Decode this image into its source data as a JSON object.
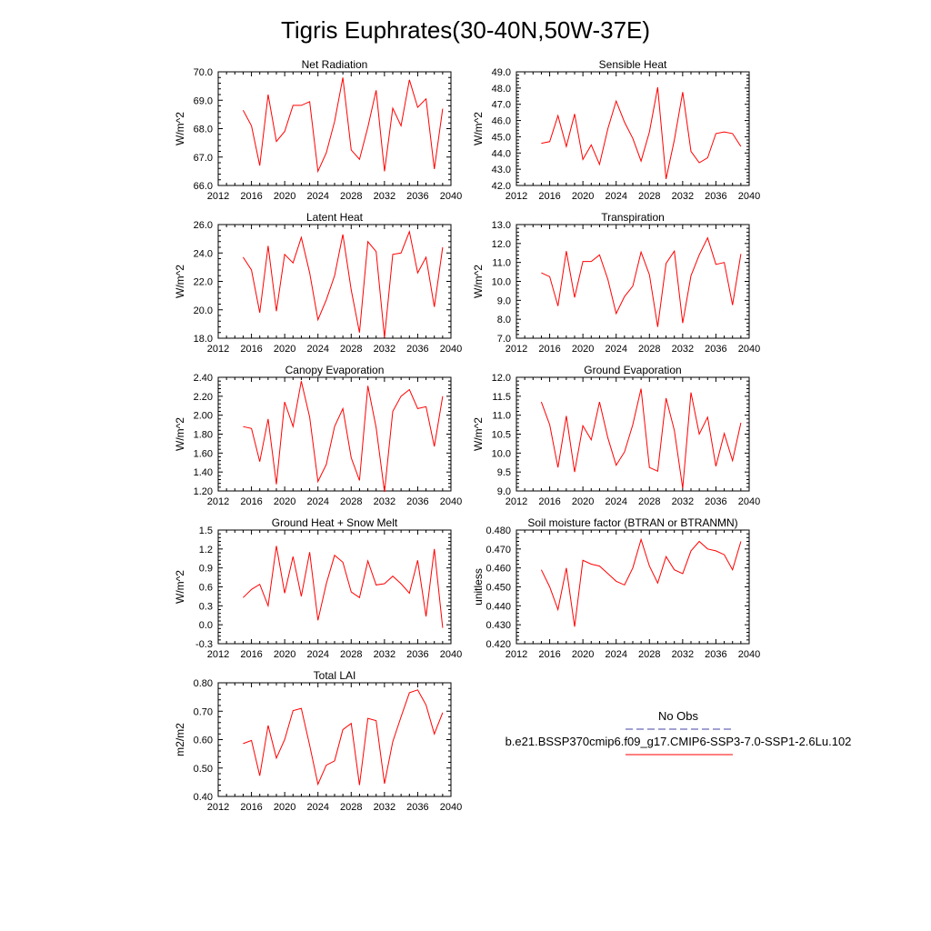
{
  "figure": {
    "title": "Tigris Euphrates(30-40N,50W-37E)"
  },
  "legend": {
    "header": "No Obs",
    "items": [
      {
        "label": "",
        "color": "#4444aa",
        "style": "dashed"
      },
      {
        "label": "b.e21.BSSP370cmip6.f09_g17.CMIP6-SSP3-7.0-SSP1-2.6Lu.102",
        "color": "#ff0000",
        "style": "solid"
      }
    ]
  },
  "chart_data": [
    {
      "type": "line",
      "title": "Net Radiation",
      "ylabel": "W/m^2",
      "xlim": [
        2012,
        2040
      ],
      "ylim": [
        66.0,
        70.0
      ],
      "yticks": [
        "66.0",
        "67.0",
        "68.0",
        "69.0",
        "70.0"
      ],
      "xticks": [
        "2012",
        "2016",
        "2020",
        "2024",
        "2028",
        "2032",
        "2036",
        "2040"
      ],
      "series": [
        {
          "color": "#ff0000",
          "x": [
            2015,
            2016,
            2017,
            2018,
            2019,
            2020,
            2021,
            2022,
            2023,
            2024,
            2025,
            2026,
            2027,
            2028,
            2029,
            2030,
            2031,
            2032,
            2033,
            2034,
            2035,
            2036,
            2037,
            2038,
            2039
          ],
          "values": [
            68.65,
            68.1,
            66.7,
            69.2,
            67.55,
            67.9,
            68.82,
            68.82,
            68.95,
            66.5,
            67.15,
            68.25,
            69.8,
            67.25,
            66.92,
            68.05,
            69.35,
            66.5,
            68.72,
            68.1,
            69.72,
            68.75,
            69.05,
            66.58,
            68.7
          ]
        }
      ]
    },
    {
      "type": "line",
      "title": "Sensible Heat",
      "ylabel": "W/m^2",
      "xlim": [
        2012,
        2040
      ],
      "ylim": [
        42.0,
        49.0
      ],
      "yticks": [
        "42.0",
        "43.0",
        "44.0",
        "45.0",
        "46.0",
        "47.0",
        "48.0",
        "49.0"
      ],
      "xticks": [
        "2012",
        "2016",
        "2020",
        "2024",
        "2028",
        "2032",
        "2036",
        "2040"
      ],
      "series": [
        {
          "color": "#ff0000",
          "x": [
            2015,
            2016,
            2017,
            2018,
            2019,
            2020,
            2021,
            2022,
            2023,
            2024,
            2025,
            2026,
            2027,
            2028,
            2029,
            2030,
            2031,
            2032,
            2033,
            2034,
            2035,
            2036,
            2037,
            2038,
            2039
          ],
          "values": [
            44.6,
            44.7,
            46.3,
            44.4,
            46.4,
            43.6,
            44.5,
            43.3,
            45.5,
            47.2,
            45.9,
            44.9,
            43.5,
            45.3,
            48.05,
            42.4,
            44.8,
            47.75,
            44.1,
            43.4,
            43.7,
            45.2,
            45.3,
            45.2,
            44.4
          ]
        }
      ]
    },
    {
      "type": "line",
      "title": "Latent Heat",
      "ylabel": "W/m^2",
      "xlim": [
        2012,
        2040
      ],
      "ylim": [
        18.0,
        26.0
      ],
      "yticks": [
        "18.0",
        "20.0",
        "22.0",
        "24.0",
        "26.0"
      ],
      "xticks": [
        "2012",
        "2016",
        "2020",
        "2024",
        "2028",
        "2032",
        "2036",
        "2040"
      ],
      "series": [
        {
          "color": "#ff0000",
          "x": [
            2015,
            2016,
            2017,
            2018,
            2019,
            2020,
            2021,
            2022,
            2023,
            2024,
            2025,
            2026,
            2027,
            2028,
            2029,
            2030,
            2031,
            2032,
            2033,
            2034,
            2035,
            2036,
            2037,
            2038,
            2039
          ],
          "values": [
            23.7,
            22.8,
            19.8,
            24.5,
            19.9,
            23.9,
            23.3,
            25.1,
            22.6,
            19.3,
            20.7,
            22.4,
            25.3,
            21.4,
            18.4,
            24.8,
            24.1,
            18.05,
            23.9,
            24.0,
            25.5,
            22.6,
            23.7,
            20.2,
            24.4
          ]
        }
      ]
    },
    {
      "type": "line",
      "title": "Transpiration",
      "ylabel": "W/m^2",
      "xlim": [
        2012,
        2040
      ],
      "ylim": [
        7.0,
        13.0
      ],
      "yticks": [
        "7.0",
        "8.0",
        "9.0",
        "10.0",
        "11.0",
        "12.0",
        "13.0"
      ],
      "xticks": [
        "2012",
        "2016",
        "2020",
        "2024",
        "2028",
        "2032",
        "2036",
        "2040"
      ],
      "series": [
        {
          "color": "#ff0000",
          "x": [
            2015,
            2016,
            2017,
            2018,
            2019,
            2020,
            2021,
            2022,
            2023,
            2024,
            2025,
            2026,
            2027,
            2028,
            2029,
            2030,
            2031,
            2032,
            2033,
            2034,
            2035,
            2036,
            2037,
            2038,
            2039
          ],
          "values": [
            10.45,
            10.25,
            8.7,
            11.6,
            9.15,
            11.05,
            11.05,
            11.4,
            10.1,
            8.3,
            9.2,
            9.75,
            11.55,
            10.35,
            7.6,
            10.95,
            11.6,
            7.8,
            10.3,
            11.4,
            12.3,
            10.9,
            11.0,
            8.75,
            11.45
          ]
        }
      ]
    },
    {
      "type": "line",
      "title": "Canopy Evaporation",
      "ylabel": "W/m^2",
      "xlim": [
        2012,
        2040
      ],
      "ylim": [
        1.2,
        2.4
      ],
      "yticks": [
        "1.20",
        "1.40",
        "1.60",
        "1.80",
        "2.00",
        "2.20",
        "2.40"
      ],
      "xticks": [
        "2012",
        "2016",
        "2020",
        "2024",
        "2028",
        "2032",
        "2036",
        "2040"
      ],
      "series": [
        {
          "color": "#ff0000",
          "x": [
            2015,
            2016,
            2017,
            2018,
            2019,
            2020,
            2021,
            2022,
            2023,
            2024,
            2025,
            2026,
            2027,
            2028,
            2029,
            2030,
            2031,
            2032,
            2033,
            2034,
            2035,
            2036,
            2037,
            2038,
            2039
          ],
          "values": [
            1.88,
            1.86,
            1.51,
            1.96,
            1.27,
            2.14,
            1.88,
            2.36,
            1.98,
            1.3,
            1.48,
            1.88,
            2.07,
            1.55,
            1.31,
            2.31,
            1.87,
            1.19,
            2.04,
            2.2,
            2.27,
            2.07,
            2.09,
            1.67,
            2.2
          ]
        }
      ]
    },
    {
      "type": "line",
      "title": "Ground Evaporation",
      "ylabel": "W/m^2",
      "xlim": [
        2012,
        2040
      ],
      "ylim": [
        9.0,
        12.0
      ],
      "yticks": [
        "9.0",
        "9.5",
        "10.0",
        "10.5",
        "11.0",
        "11.5",
        "12.0"
      ],
      "xticks": [
        "2012",
        "2016",
        "2020",
        "2024",
        "2028",
        "2032",
        "2036",
        "2040"
      ],
      "series": [
        {
          "color": "#ff0000",
          "x": [
            2015,
            2016,
            2017,
            2018,
            2019,
            2020,
            2021,
            2022,
            2023,
            2024,
            2025,
            2026,
            2027,
            2028,
            2029,
            2030,
            2031,
            2032,
            2033,
            2034,
            2035,
            2036,
            2037,
            2038,
            2039
          ],
          "values": [
            11.35,
            10.75,
            9.62,
            10.98,
            9.5,
            10.72,
            10.35,
            11.35,
            10.4,
            9.68,
            10.03,
            10.75,
            11.7,
            9.62,
            9.52,
            11.45,
            10.6,
            9.07,
            11.6,
            10.5,
            10.95,
            9.65,
            10.52,
            9.8,
            10.8
          ]
        }
      ]
    },
    {
      "type": "line",
      "title": "Ground Heat + Snow Melt",
      "ylabel": "W/m^2",
      "xlim": [
        2012,
        2040
      ],
      "ylim": [
        -0.3,
        1.5
      ],
      "yticks": [
        "-0.3",
        "0.0",
        "0.3",
        "0.6",
        "0.9",
        "1.2",
        "1.5"
      ],
      "xticks": [
        "2012",
        "2016",
        "2020",
        "2024",
        "2028",
        "2032",
        "2036",
        "2040"
      ],
      "series": [
        {
          "color": "#ff0000",
          "x": [
            2015,
            2016,
            2017,
            2018,
            2019,
            2020,
            2021,
            2022,
            2023,
            2024,
            2025,
            2026,
            2027,
            2028,
            2029,
            2030,
            2031,
            2032,
            2033,
            2034,
            2035,
            2036,
            2037,
            2038,
            2039
          ],
          "values": [
            0.43,
            0.56,
            0.64,
            0.3,
            1.25,
            0.5,
            1.08,
            0.45,
            1.15,
            0.07,
            0.65,
            1.1,
            0.99,
            0.52,
            0.43,
            1.01,
            0.63,
            0.65,
            0.77,
            0.65,
            0.5,
            1.02,
            0.13,
            1.2,
            -0.05
          ]
        }
      ]
    },
    {
      "type": "line",
      "title": "Soil moisture factor (BTRAN or BTRANMN)",
      "ylabel": "unitless",
      "xlim": [
        2012,
        2040
      ],
      "ylim": [
        0.42,
        0.48
      ],
      "yticks": [
        "0.420",
        "0.430",
        "0.440",
        "0.450",
        "0.460",
        "0.470",
        "0.480"
      ],
      "xticks": [
        "2012",
        "2016",
        "2020",
        "2024",
        "2028",
        "2032",
        "2036",
        "2040"
      ],
      "series": [
        {
          "color": "#ff0000",
          "x": [
            2015,
            2016,
            2017,
            2018,
            2019,
            2020,
            2021,
            2022,
            2023,
            2024,
            2025,
            2026,
            2027,
            2028,
            2029,
            2030,
            2031,
            2032,
            2033,
            2034,
            2035,
            2036,
            2037,
            2038,
            2039
          ],
          "values": [
            0.459,
            0.45,
            0.438,
            0.46,
            0.429,
            0.464,
            0.462,
            0.461,
            0.457,
            0.453,
            0.451,
            0.46,
            0.475,
            0.461,
            0.452,
            0.466,
            0.459,
            0.457,
            0.469,
            0.474,
            0.47,
            0.469,
            0.467,
            0.459,
            0.474
          ]
        }
      ]
    },
    {
      "type": "line",
      "title": "Total LAI",
      "ylabel": "m2/m2",
      "xlim": [
        2012,
        2040
      ],
      "ylim": [
        0.4,
        0.8
      ],
      "yticks": [
        "0.40",
        "0.50",
        "0.60",
        "0.70",
        "0.80"
      ],
      "xticks": [
        "2012",
        "2016",
        "2020",
        "2024",
        "2028",
        "2032",
        "2036",
        "2040"
      ],
      "series": [
        {
          "color": "#ff0000",
          "x": [
            2015,
            2016,
            2017,
            2018,
            2019,
            2020,
            2021,
            2022,
            2023,
            2024,
            2025,
            2026,
            2027,
            2028,
            2029,
            2030,
            2031,
            2032,
            2033,
            2034,
            2035,
            2036,
            2037,
            2038,
            2039
          ],
          "values": [
            0.586,
            0.597,
            0.473,
            0.65,
            0.535,
            0.6,
            0.702,
            0.71,
            0.58,
            0.443,
            0.51,
            0.525,
            0.635,
            0.657,
            0.44,
            0.675,
            0.667,
            0.445,
            0.593,
            0.68,
            0.765,
            0.775,
            0.722,
            0.62,
            0.695
          ]
        }
      ]
    }
  ]
}
